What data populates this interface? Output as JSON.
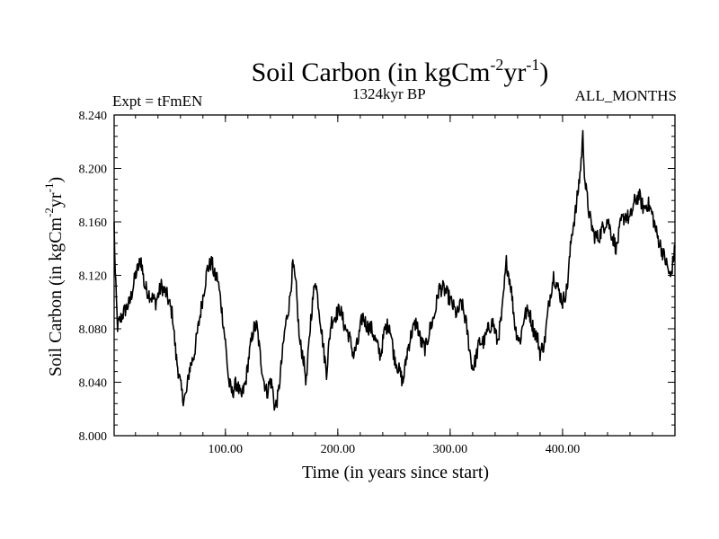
{
  "chart_data": {
    "type": "line",
    "title": {
      "main": "Soil Carbon (in kgCm",
      "sup1": "-2",
      "mid": "yr",
      "sup2": "-1",
      "end": ")"
    },
    "left_label": "Expt = tFmEN",
    "center_label": "1324kyr BP",
    "right_label": "ALL_MONTHS",
    "xlabel": "Time (in years since start)",
    "ylabel": {
      "main": "Soil Carbon (in kgCm",
      "sup1": "-2",
      "mid": "yr",
      "sup2": "-1",
      "end": ")"
    },
    "xlim": [
      1,
      500
    ],
    "ylim": [
      8.0,
      8.24
    ],
    "x_ticks": [
      100,
      200,
      300,
      400
    ],
    "x_tick_labels": [
      "100.00",
      "200.00",
      "300.00",
      "400.00"
    ],
    "y_ticks": [
      8.0,
      8.04,
      8.08,
      8.12,
      8.16,
      8.2,
      8.24
    ],
    "y_tick_labels": [
      "8.000",
      "8.040",
      "8.080",
      "8.120",
      "8.160",
      "8.200",
      "8.240"
    ],
    "series": [
      {
        "name": "Soil Carbon",
        "color": "#000000",
        "noise": 0.012,
        "x": [
          1,
          2,
          4,
          7,
          10,
          15,
          20,
          25,
          28,
          33,
          38,
          43,
          48,
          53,
          56,
          60,
          62,
          65,
          68,
          72,
          76,
          80,
          84,
          88,
          90,
          93,
          96,
          100,
          103,
          106,
          110,
          114,
          118,
          121,
          125,
          128,
          131,
          134,
          137,
          140,
          142,
          144,
          147,
          150,
          153,
          157,
          160,
          163,
          166,
          169,
          172,
          176,
          180,
          184,
          188,
          190,
          194,
          198,
          202,
          206,
          210,
          214,
          218,
          222,
          226,
          230,
          234,
          238,
          242,
          246,
          250,
          254,
          258,
          262,
          266,
          270,
          274,
          278,
          282,
          286,
          290,
          294,
          298,
          302,
          306,
          310,
          314,
          318,
          320,
          322,
          326,
          330,
          334,
          338,
          342,
          346,
          350,
          354,
          358,
          362,
          366,
          370,
          374,
          378,
          380,
          384,
          388,
          392,
          396,
          400,
          404,
          408,
          412,
          416,
          418,
          420,
          424,
          428,
          432,
          436,
          440,
          444,
          448,
          452,
          456,
          460,
          464,
          468,
          472,
          476,
          480,
          484,
          488,
          492,
          496,
          500
        ],
        "values": [
          8.158,
          8.12,
          8.082,
          8.088,
          8.093,
          8.1,
          8.12,
          8.132,
          8.112,
          8.105,
          8.1,
          8.112,
          8.105,
          8.09,
          8.06,
          8.038,
          8.028,
          8.03,
          8.05,
          8.06,
          8.082,
          8.104,
          8.125,
          8.13,
          8.12,
          8.118,
          8.1,
          8.07,
          8.04,
          8.032,
          8.04,
          8.028,
          8.04,
          8.06,
          8.08,
          8.082,
          8.06,
          8.042,
          8.032,
          8.042,
          8.035,
          8.02,
          8.03,
          8.055,
          8.08,
          8.1,
          8.128,
          8.11,
          8.07,
          8.06,
          8.04,
          8.088,
          8.118,
          8.09,
          8.06,
          8.048,
          8.085,
          8.09,
          8.095,
          8.082,
          8.075,
          8.06,
          8.07,
          8.09,
          8.082,
          8.08,
          8.07,
          8.06,
          8.08,
          8.084,
          8.06,
          8.05,
          8.04,
          8.064,
          8.078,
          8.085,
          8.07,
          8.065,
          8.08,
          8.09,
          8.11,
          8.11,
          8.105,
          8.098,
          8.09,
          8.1,
          8.085,
          8.06,
          8.05,
          8.055,
          8.07,
          8.07,
          8.08,
          8.085,
          8.07,
          8.09,
          8.13,
          8.112,
          8.08,
          8.07,
          8.09,
          8.094,
          8.08,
          8.072,
          8.062,
          8.07,
          8.1,
          8.12,
          8.11,
          8.1,
          8.11,
          8.15,
          8.17,
          8.2,
          8.224,
          8.19,
          8.164,
          8.15,
          8.148,
          8.156,
          8.162,
          8.15,
          8.14,
          8.16,
          8.165,
          8.162,
          8.175,
          8.18,
          8.17,
          8.174,
          8.165,
          8.15,
          8.14,
          8.13,
          8.118,
          8.14
        ]
      }
    ]
  }
}
